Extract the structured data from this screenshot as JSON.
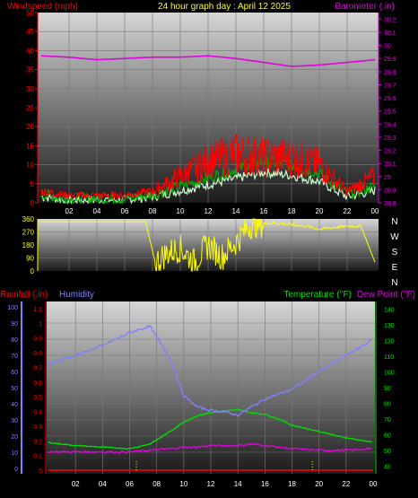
{
  "header": {
    "wind_title": "Windspeed (mph)",
    "graph_title": "24 hour graph day : April 12 2025",
    "baro_title": "Barometer (.in)"
  },
  "lower_header": {
    "rain_title": "Rainfall (.in)",
    "humidity_title": "Humidity",
    "temp_title": "Temperature (°F)",
    "dew_title": "Dew Point (°F)"
  },
  "colors": {
    "wind": "#ff0000",
    "gust_dark": "#008000",
    "gust_light": "#ccffcc",
    "barometer": "#e000e0",
    "direction": "#ffff00",
    "humidity": "#8080ff",
    "temperature": "#00e000",
    "dewpoint": "#e000e0",
    "rain": "#ff0000",
    "title": "#ffff00"
  },
  "x_ticks": [
    "02",
    "04",
    "06",
    "08",
    "10",
    "12",
    "14",
    "16",
    "18",
    "20",
    "22",
    "00"
  ],
  "compass": [
    "N",
    "W",
    "S",
    "E",
    "N"
  ],
  "chart_data": [
    {
      "type": "line",
      "name": "wind-barometer",
      "title": "24 hour graph day : April 12 2025",
      "ylabel": "Windspeed (mph)",
      "y2label": "Barometer (.in)",
      "ylim": [
        0,
        50
      ],
      "y2lim": [
        28.8,
        30.25
      ],
      "y_ticks": [
        "0",
        "5",
        "10",
        "15",
        "20",
        "25",
        "30",
        "35",
        "40",
        "45",
        "50"
      ],
      "y2_ticks": [
        "28.8",
        "28.9",
        "29",
        "29.1",
        "29.2",
        "29.3",
        "29.4",
        "29.5",
        "29.6",
        "29.7",
        "29.8",
        "29.9",
        "30",
        "30.1",
        "30.2"
      ],
      "x_hours": [
        0,
        2,
        4,
        6,
        8,
        10,
        12,
        14,
        16,
        18,
        20,
        22,
        24
      ],
      "barometer": [
        29.92,
        29.91,
        29.89,
        29.9,
        29.91,
        29.91,
        29.92,
        29.9,
        29.87,
        29.84,
        29.85,
        29.87,
        29.89
      ],
      "wind_avg": [
        2,
        1,
        1,
        1,
        2,
        4,
        6,
        8,
        10,
        9,
        7,
        2,
        4
      ],
      "wind_gust": [
        3,
        2,
        2,
        2,
        3,
        7,
        11,
        13,
        12,
        12,
        10,
        3,
        7
      ],
      "grid": true
    },
    {
      "type": "line",
      "name": "wind-direction",
      "ylim": [
        0,
        360
      ],
      "y_ticks": [
        "0",
        "90",
        "180",
        "270",
        "360"
      ],
      "x_hours": [
        0,
        2,
        4,
        6,
        7.5,
        8.2,
        9,
        10,
        11,
        12,
        13,
        14,
        15,
        16,
        17,
        18,
        19,
        20,
        21,
        22,
        23,
        24
      ],
      "direction": [
        340,
        340,
        340,
        340,
        340,
        60,
        120,
        160,
        60,
        180,
        100,
        200,
        320,
        330,
        330,
        320,
        310,
        290,
        300,
        310,
        310,
        60
      ]
    },
    {
      "type": "line",
      "name": "rain-humidity-temp",
      "y_left_ticks": [
        "0",
        "10",
        "20",
        "30",
        "40",
        "50",
        "60",
        "70",
        "80",
        "90",
        "100"
      ],
      "y_rain_ticks": [
        "0",
        "0.1",
        "0.2",
        "0.3",
        "0.4",
        "0.5",
        "0.6",
        "0.7",
        "0.8",
        "0.9",
        "1",
        "1.1"
      ],
      "y_temp_ticks": [
        "40",
        "50",
        "60",
        "70",
        "80",
        "90",
        "100",
        "110",
        "120",
        "130",
        "140"
      ],
      "ylim_humidity": [
        0,
        100
      ],
      "ylim_temp": [
        35,
        145
      ],
      "ylim_rain": [
        0,
        1.1
      ],
      "x_hours": [
        0,
        2,
        4,
        6,
        7.5,
        9,
        10,
        11,
        12,
        13,
        14,
        15,
        16,
        17,
        18,
        20,
        22,
        24
      ],
      "humidity": [
        65,
        70,
        76,
        84,
        88,
        68,
        45,
        38,
        36,
        35,
        33,
        38,
        43,
        46,
        49,
        60,
        70,
        80
      ],
      "temperature": [
        55,
        53,
        52,
        51,
        54,
        62,
        68,
        72,
        74,
        75,
        76,
        74,
        73,
        70,
        66,
        62,
        58,
        55
      ],
      "dewpoint": [
        49,
        49,
        49,
        49,
        50,
        51,
        52,
        52,
        53,
        53,
        53,
        54,
        53,
        52,
        51,
        50,
        50,
        51
      ],
      "rainfall": [
        0,
        0,
        0,
        0,
        0,
        0,
        0,
        0,
        0,
        0,
        0,
        0,
        0,
        0,
        0,
        0,
        0,
        0
      ],
      "rain_markers": [
        6.5,
        19.5
      ]
    }
  ]
}
